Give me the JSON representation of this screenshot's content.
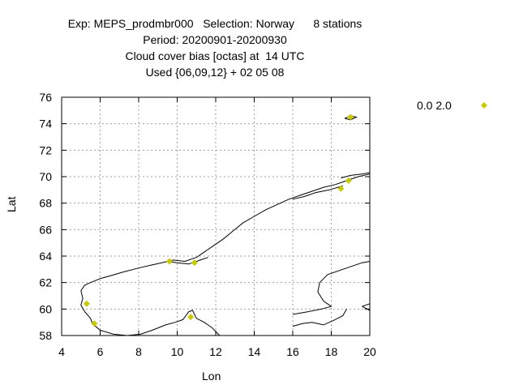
{
  "chart_data": {
    "type": "scatter",
    "title_lines": [
      "Exp: MEPS_prodmbr000   Selection: Norway      8 stations",
      "Period: 20200901-20200930",
      "Cloud cover bias [octas] at  14 UTC",
      "Used {06,09,12} + 02 05 08"
    ],
    "xlabel": "Lon",
    "ylabel": "Lat",
    "xlim": [
      4,
      20
    ],
    "ylim": [
      58,
      76
    ],
    "xticks": [
      "4",
      "6",
      "8",
      "10",
      "12",
      "14",
      "16",
      "18",
      "20"
    ],
    "yticks": [
      "58",
      "60",
      "62",
      "64",
      "66",
      "68",
      "70",
      "72",
      "74",
      "76"
    ],
    "grid": true,
    "legend_position": "top-right",
    "series": [
      {
        "name": "0.0 2.0",
        "color": "#c8c800",
        "marker": "diamond",
        "points": [
          {
            "x": 19.0,
            "y": 74.5
          },
          {
            "x": 18.9,
            "y": 69.7
          },
          {
            "x": 18.5,
            "y": 69.1
          },
          {
            "x": 9.6,
            "y": 63.6
          },
          {
            "x": 10.9,
            "y": 63.5
          },
          {
            "x": 5.3,
            "y": 60.4
          },
          {
            "x": 10.7,
            "y": 59.4
          },
          {
            "x": 5.7,
            "y": 58.9
          }
        ]
      }
    ]
  },
  "map_colors": {
    "coastline": "#000000",
    "grid": "#a0a0a0"
  }
}
